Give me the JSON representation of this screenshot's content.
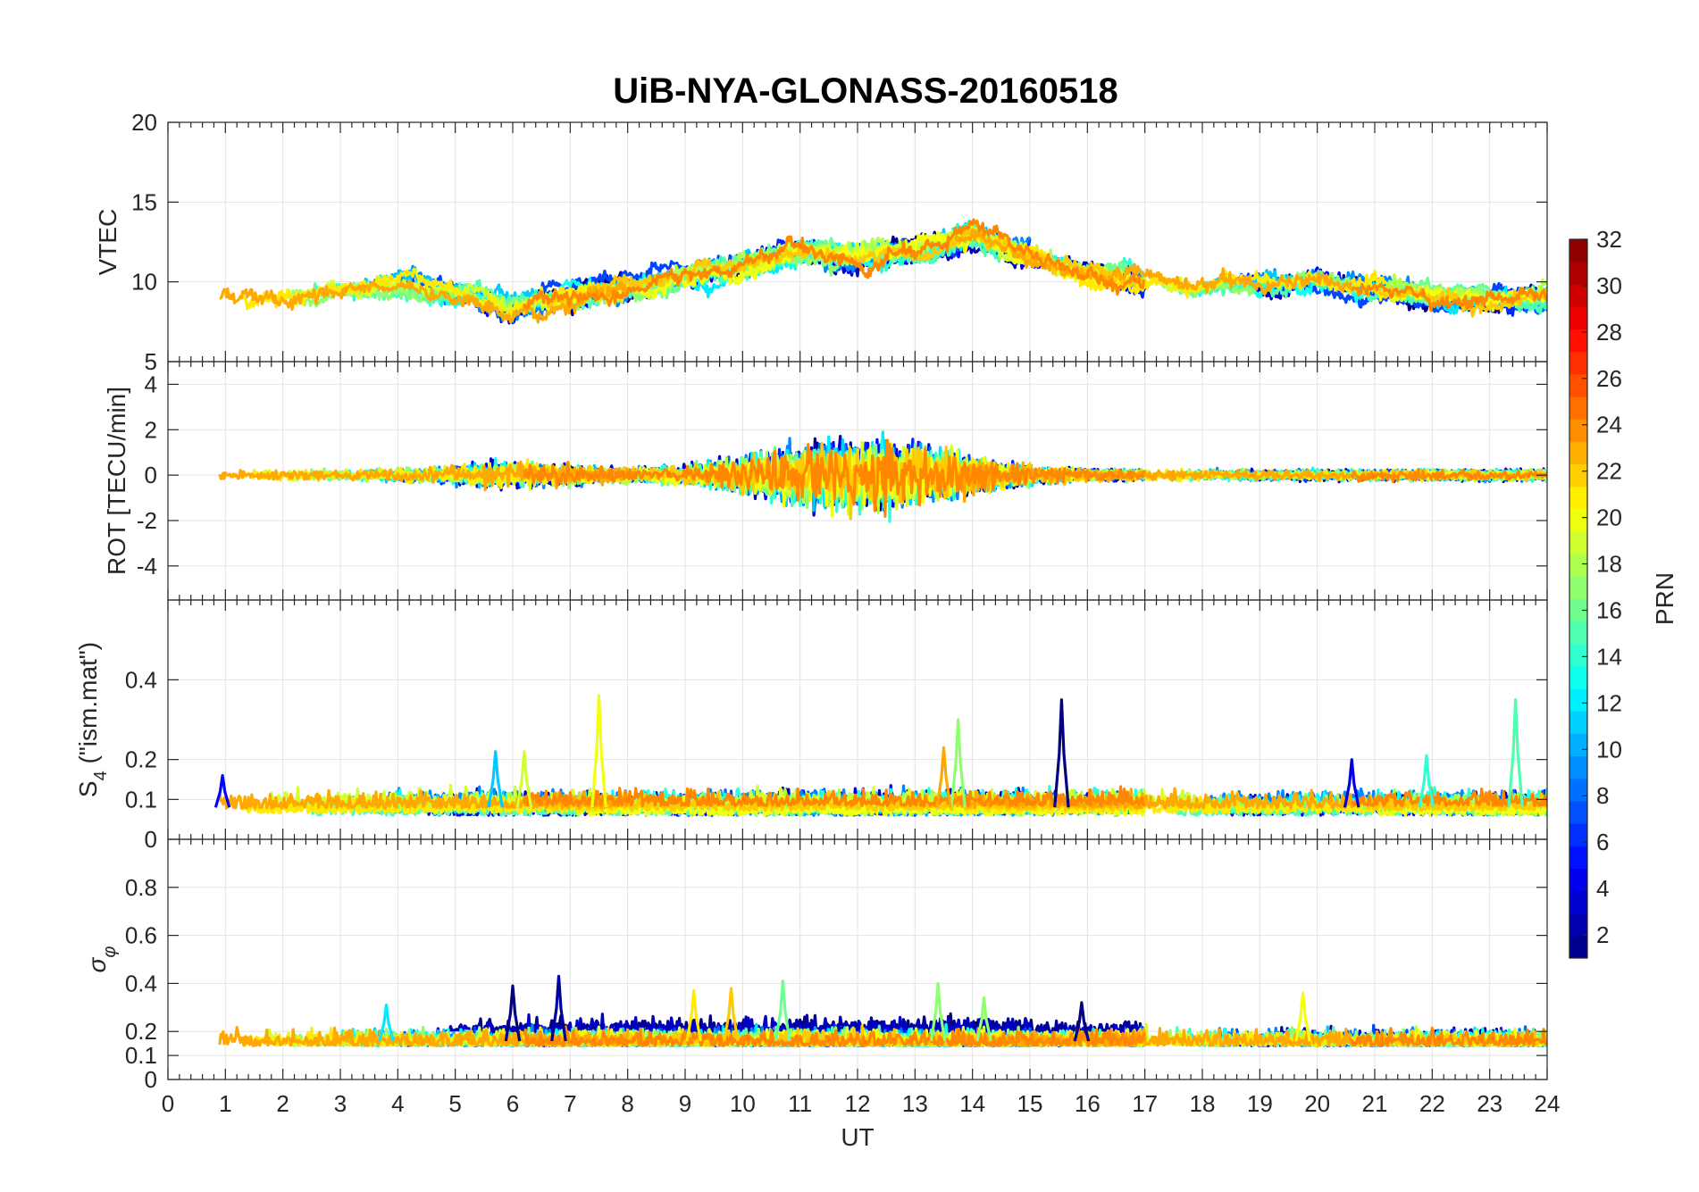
{
  "chart_data": {
    "type": "line",
    "title": "UiB-NYA-GLONASS-20160518",
    "xlabel": "UT",
    "xlim": [
      0,
      24
    ],
    "x_ticks": [
      "0",
      "1",
      "2",
      "3",
      "4",
      "5",
      "6",
      "7",
      "8",
      "9",
      "10",
      "11",
      "12",
      "13",
      "14",
      "15",
      "16",
      "17",
      "18",
      "19",
      "20",
      "21",
      "22",
      "23",
      "24"
    ],
    "panels": [
      {
        "id": "vtec",
        "ylabel": "VTEC",
        "ylim": [
          5,
          20
        ],
        "y_ticks": [
          "5",
          "10",
          "15",
          "20"
        ],
        "profile": {
          "x": [
            0,
            2,
            4,
            6,
            8,
            10,
            11,
            12,
            13,
            14,
            15,
            16,
            18,
            20,
            22,
            24
          ],
          "y": [
            9,
            9,
            10,
            8.5,
            9.5,
            11,
            12,
            11.5,
            12,
            13,
            11.5,
            10.5,
            9.5,
            10,
            9,
            9
          ]
        },
        "noise": 1.6
      },
      {
        "id": "rot",
        "ylabel": "ROT [TECU/min]",
        "ylim": [
          -5.5,
          5
        ],
        "y_ticks": [
          "-4",
          "-2",
          "0",
          "2",
          "4"
        ],
        "profile": {
          "x": [
            0,
            24
          ],
          "y": [
            0,
            0
          ]
        },
        "noise": 0.5
      },
      {
        "id": "s4",
        "ylabel": "S4 (\"ism.mat\")",
        "ylim": [
          0,
          0.6
        ],
        "y_ticks": [
          "0",
          "0.1",
          "0.2",
          "0.4"
        ],
        "profile": {
          "x": [
            0,
            24
          ],
          "y": [
            0.06,
            0.06
          ]
        },
        "noise": 0.025,
        "peaks": [
          {
            "x": 7.5,
            "y": 0.36,
            "prn": 20
          },
          {
            "x": 15.55,
            "y": 0.35,
            "prn": 1
          },
          {
            "x": 23.45,
            "y": 0.35,
            "prn": 15
          },
          {
            "x": 13.75,
            "y": 0.3,
            "prn": 17
          },
          {
            "x": 13.5,
            "y": 0.23,
            "prn": 23
          },
          {
            "x": 5.7,
            "y": 0.22,
            "prn": 11
          },
          {
            "x": 6.2,
            "y": 0.22,
            "prn": 19
          },
          {
            "x": 20.6,
            "y": 0.2,
            "prn": 4
          },
          {
            "x": 21.9,
            "y": 0.21,
            "prn": 14
          },
          {
            "x": 0.95,
            "y": 0.16,
            "prn": 5
          }
        ]
      },
      {
        "id": "sigma",
        "ylabel": "σφ",
        "ylim": [
          0,
          1
        ],
        "y_ticks": [
          "0",
          "0.1",
          "0.2",
          "0.4",
          "0.6",
          "0.8"
        ],
        "profile": {
          "x": [
            0,
            24
          ],
          "y": [
            0.14,
            0.14
          ]
        },
        "noise": 0.04,
        "peaks": [
          {
            "x": 6.8,
            "y": 0.43,
            "prn": 2
          },
          {
            "x": 6.0,
            "y": 0.39,
            "prn": 1
          },
          {
            "x": 10.7,
            "y": 0.41,
            "prn": 16
          },
          {
            "x": 13.4,
            "y": 0.4,
            "prn": 17
          },
          {
            "x": 9.15,
            "y": 0.37,
            "prn": 21
          },
          {
            "x": 9.8,
            "y": 0.38,
            "prn": 22
          },
          {
            "x": 19.75,
            "y": 0.36,
            "prn": 20
          },
          {
            "x": 14.2,
            "y": 0.34,
            "prn": 17
          },
          {
            "x": 15.9,
            "y": 0.32,
            "prn": 1
          },
          {
            "x": 3.8,
            "y": 0.31,
            "prn": 12
          }
        ]
      }
    ],
    "series_prn": [
      1,
      2,
      3,
      4,
      5,
      6,
      7,
      8,
      9,
      10,
      11,
      12,
      13,
      14,
      15,
      16,
      17,
      18,
      19,
      20,
      21,
      22,
      23,
      24
    ],
    "colorbar": {
      "label": "PRN",
      "range": [
        1,
        32
      ],
      "ticks": [
        "2",
        "4",
        "6",
        "8",
        "10",
        "12",
        "14",
        "16",
        "18",
        "20",
        "22",
        "24",
        "26",
        "28",
        "30",
        "32"
      ],
      "colormap": "jet"
    },
    "grid": true
  }
}
